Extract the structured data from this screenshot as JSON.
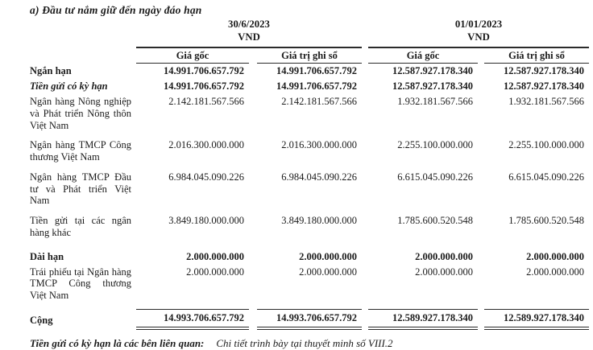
{
  "title": "a) Đầu tư nắm giữ đến ngày đáo hạn",
  "colors": {
    "text": "#1b1b1b",
    "background": "#ffffff",
    "rule": "#2b2b2b"
  },
  "table": {
    "period_groups": [
      {
        "date": "30/6/2023",
        "currency": "VND"
      },
      {
        "date": "01/01/2023",
        "currency": "VND"
      }
    ],
    "column_headers": [
      "Giá gốc",
      "Giá trị ghi sổ",
      "Giá gốc",
      "Giá trị ghi sổ"
    ],
    "rows": [
      {
        "label": "Ngắn hạn",
        "values": [
          "14.991.706.657.792",
          "14.991.706.657.792",
          "12.587.927.178.340",
          "12.587.927.178.340"
        ]
      },
      {
        "label": "Tiền gửi có kỳ hạn",
        "values": [
          "14.991.706.657.792",
          "14.991.706.657.792",
          "12.587.927.178.340",
          "12.587.927.178.340"
        ]
      },
      {
        "label": "Ngân hàng Nông nghiệp và Phát triển Nông thôn Việt Nam",
        "values": [
          "2.142.181.567.566",
          "2.142.181.567.566",
          "1.932.181.567.566",
          "1.932.181.567.566"
        ]
      },
      {
        "label": "Ngân hàng TMCP Công thương Việt Nam",
        "values": [
          "2.016.300.000.000",
          "2.016.300.000.000",
          "2.255.100.000.000",
          "2.255.100.000.000"
        ]
      },
      {
        "label": "Ngân hàng TMCP Đầu tư và Phát triển Việt Nam",
        "values": [
          "6.984.045.090.226",
          "6.984.045.090.226",
          "6.615.045.090.226",
          "6.615.045.090.226"
        ]
      },
      {
        "label": "Tiền gửi tại các ngân hàng khác",
        "values": [
          "3.849.180.000.000",
          "3.849.180.000.000",
          "1.785.600.520.548",
          "1.785.600.520.548"
        ]
      },
      {
        "label": "Dài hạn",
        "values": [
          "2.000.000.000",
          "2.000.000.000",
          "2.000.000.000",
          "2.000.000.000"
        ]
      },
      {
        "label": "Trái phiếu tại Ngân hàng TMCP Công thương Việt Nam",
        "values": [
          "2.000.000.000",
          "2.000.000.000",
          "2.000.000.000",
          "2.000.000.000"
        ]
      }
    ],
    "total_row": {
      "label": "Cộng",
      "values": [
        "14.993.706.657.792",
        "14.993.706.657.792",
        "12.589.927.178.340",
        "12.589.927.178.340"
      ]
    }
  },
  "footnote": {
    "label": "Tiền gửi có kỳ hạn là các bên liên quan:",
    "text": "Chi tiết trình bày tại thuyết minh số VIII.2"
  }
}
